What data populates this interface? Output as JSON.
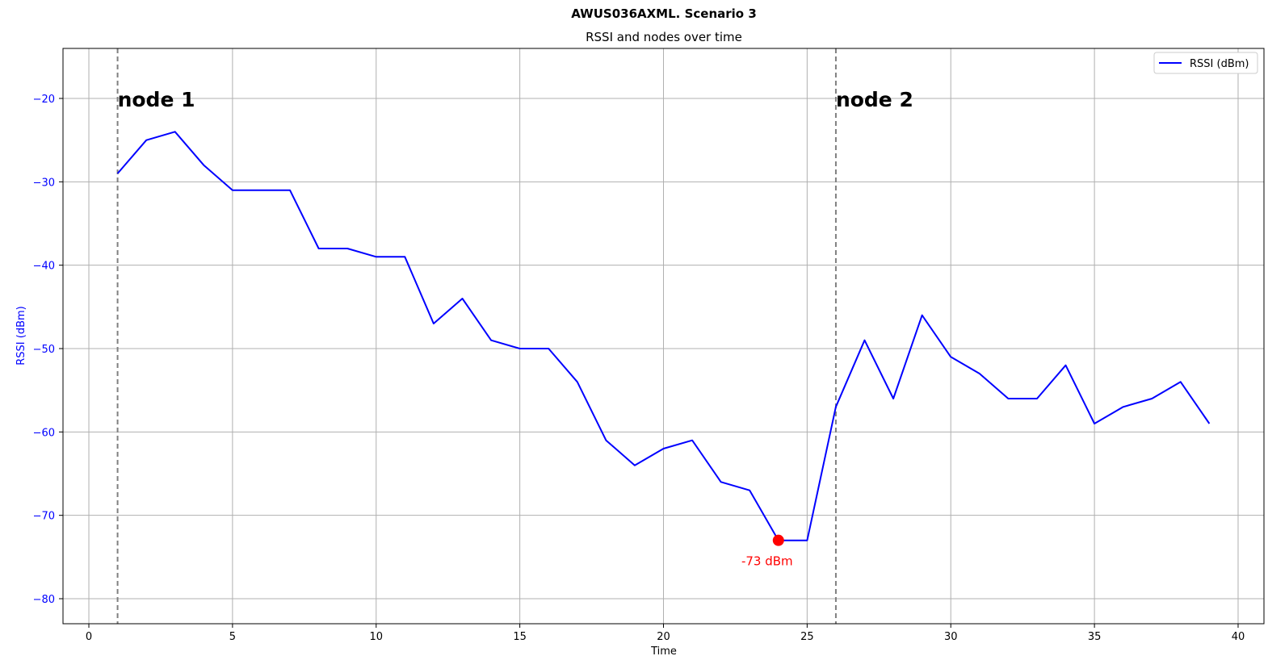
{
  "chart_data": {
    "type": "line",
    "suptitle": "AWUS036AXML. Scenario 3",
    "title": "RSSI and nodes over time",
    "xlabel": "Time",
    "ylabel": "RSSI (dBm)",
    "xlim": [
      -0.9,
      40.9
    ],
    "ylim": [
      -83,
      -14
    ],
    "xticks": [
      0,
      5,
      10,
      15,
      20,
      25,
      30,
      35,
      40
    ],
    "yticks": [
      -80,
      -70,
      -60,
      -50,
      -40,
      -30,
      -20
    ],
    "ytick_labels": [
      "−80",
      "−70",
      "−60",
      "−50",
      "−40",
      "−30",
      "−20"
    ],
    "grid": true,
    "legend": {
      "position": "top-right",
      "entries": [
        "RSSI (dBm)"
      ]
    },
    "series": [
      {
        "name": "RSSI (dBm)",
        "color": "#0000ff",
        "x": [
          1,
          2,
          3,
          4,
          5,
          6,
          7,
          8,
          9,
          10,
          11,
          12,
          13,
          14,
          15,
          16,
          17,
          18,
          19,
          20,
          21,
          22,
          23,
          24,
          25,
          26,
          27,
          28,
          29,
          30,
          31,
          32,
          33,
          34,
          35,
          36,
          37,
          38,
          39
        ],
        "values": [
          -29,
          -25,
          -24,
          -28,
          -31,
          -31,
          -31,
          -38,
          -38,
          -39,
          -39,
          -47,
          -44,
          -49,
          -50,
          -50,
          -54,
          -61,
          -64,
          -62,
          -61,
          -66,
          -67,
          -73,
          -73,
          -57,
          -49,
          -56,
          -46,
          -51,
          -53,
          -56,
          -56,
          -52,
          -59,
          -57,
          -56,
          -54,
          -59
        ]
      }
    ],
    "vlines": [
      {
        "x": 1,
        "label": "node 1",
        "color": "#808080"
      },
      {
        "x": 26,
        "label": "node 2",
        "color": "#808080"
      }
    ],
    "min_marker": {
      "x": 24,
      "y": -73,
      "label": "-73 dBm",
      "color": "#ff0000"
    }
  }
}
